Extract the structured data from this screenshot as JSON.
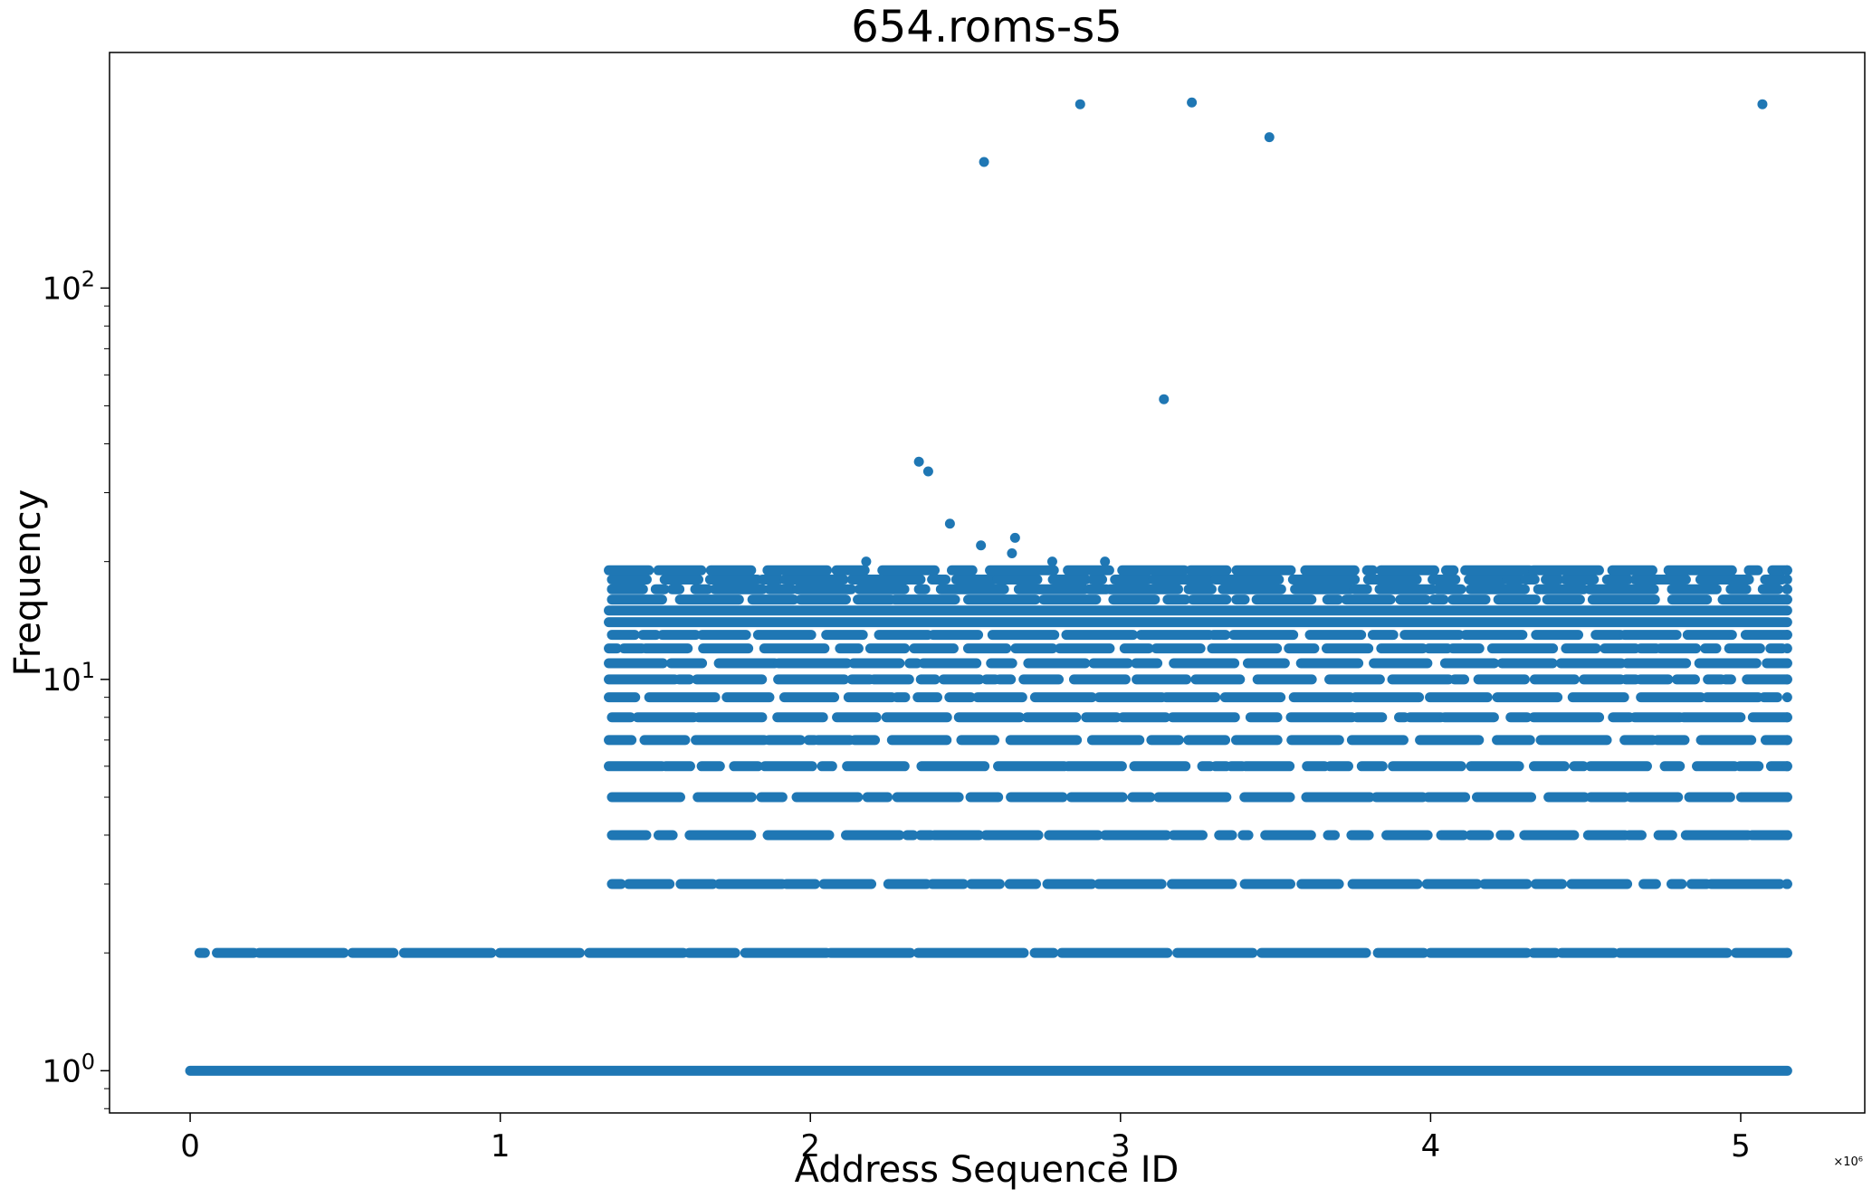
{
  "chart_data": {
    "type": "scatter",
    "title": "654.roms-s5",
    "xlabel": "Address Sequence ID",
    "ylabel": "Frequency",
    "x_offset_label": "×10⁶",
    "yscale": "log",
    "xlim": [
      -260000,
      5400000
    ],
    "ylim": [
      0.78,
      400
    ],
    "x_ticks": [
      0,
      1000000,
      2000000,
      3000000,
      4000000,
      5000000
    ],
    "x_tick_labels": [
      "0",
      "1",
      "2",
      "3",
      "4",
      "5"
    ],
    "y_ticks": [
      1,
      10,
      100
    ],
    "y_tick_labels": [
      {
        "base": "10",
        "exp": "0"
      },
      {
        "base": "10",
        "exp": "1"
      },
      {
        "base": "10",
        "exp": "2"
      }
    ],
    "grid": false,
    "marker_color": "#1f77b4",
    "bands": [
      {
        "y": 1,
        "x_start": 0,
        "x_end": 5150000,
        "density": "continuous"
      },
      {
        "y": 2,
        "x_start": 30000,
        "x_end": 5150000,
        "density": "dense"
      },
      {
        "y": 3,
        "x_start": 1360000,
        "x_end": 5150000,
        "density": "dense"
      },
      {
        "y": 4,
        "x_start": 1360000,
        "x_end": 5150000,
        "density": "dense"
      },
      {
        "y": 5,
        "x_start": 1360000,
        "x_end": 5150000,
        "density": "dense"
      },
      {
        "y": 6,
        "x_start": 1350000,
        "x_end": 5150000,
        "density": "dense"
      },
      {
        "y": 7,
        "x_start": 1350000,
        "x_end": 5150000,
        "density": "dense"
      },
      {
        "y": 8,
        "x_start": 1360000,
        "x_end": 5150000,
        "density": "dense"
      },
      {
        "y": 9,
        "x_start": 1350000,
        "x_end": 5150000,
        "density": "dense"
      },
      {
        "y": 10,
        "x_start": 1350000,
        "x_end": 5150000,
        "density": "dense"
      },
      {
        "y": 11,
        "x_start": 1350000,
        "x_end": 5150000,
        "density": "dense"
      },
      {
        "y": 12,
        "x_start": 1350000,
        "x_end": 5150000,
        "density": "dense"
      },
      {
        "y": 13,
        "x_start": 1360000,
        "x_end": 5150000,
        "density": "dense"
      },
      {
        "y": 14,
        "x_start": 1350000,
        "x_end": 5150000,
        "density": "continuous"
      },
      {
        "y": 15,
        "x_start": 1350000,
        "x_end": 5150000,
        "density": "continuous"
      },
      {
        "y": 16,
        "x_start": 1360000,
        "x_end": 5150000,
        "density": "dense"
      },
      {
        "y": 17,
        "x_start": 1360000,
        "x_end": 5150000,
        "density": "dense"
      },
      {
        "y": 18,
        "x_start": 1360000,
        "x_end": 5150000,
        "density": "dense"
      },
      {
        "y": 19,
        "x_start": 1350000,
        "x_end": 5150000,
        "density": "dense"
      }
    ],
    "outliers": [
      {
        "x": 2180000,
        "y": 20
      },
      {
        "x": 2350000,
        "y": 36
      },
      {
        "x": 2380000,
        "y": 34
      },
      {
        "x": 2450000,
        "y": 25
      },
      {
        "x": 2550000,
        "y": 22
      },
      {
        "x": 2560000,
        "y": 210
      },
      {
        "x": 2650000,
        "y": 21
      },
      {
        "x": 2660000,
        "y": 23
      },
      {
        "x": 2780000,
        "y": 20
      },
      {
        "x": 2870000,
        "y": 295
      },
      {
        "x": 2950000,
        "y": 20
      },
      {
        "x": 3140000,
        "y": 52
      },
      {
        "x": 3230000,
        "y": 298
      },
      {
        "x": 3480000,
        "y": 243
      },
      {
        "x": 5070000,
        "y": 295
      }
    ]
  }
}
